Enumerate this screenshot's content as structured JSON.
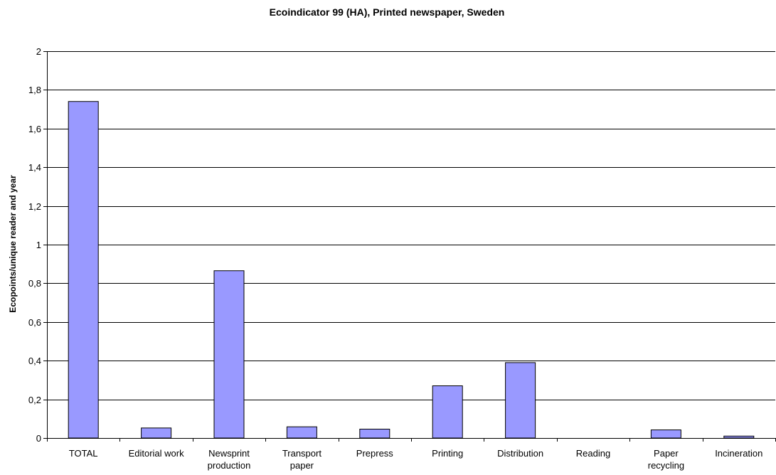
{
  "chart_data": {
    "type": "bar",
    "title": "Ecoindicator 99 (HA), Printed newspaper, Sweden",
    "xlabel": "",
    "ylabel": "Ecopoints/unique reader and year",
    "ylim": [
      0,
      2
    ],
    "yticks": [
      0,
      0.2,
      0.4,
      0.6,
      0.8,
      1,
      1.2,
      1.4,
      1.6,
      1.8,
      2
    ],
    "ytick_labels": [
      "0",
      "0,2",
      "0,4",
      "0,6",
      "0,8",
      "1",
      "1,2",
      "1,4",
      "1,6",
      "1,8",
      "2"
    ],
    "categories": [
      [
        "TOTAL"
      ],
      [
        "Editorial work"
      ],
      [
        "Newsprint",
        "production"
      ],
      [
        "Transport",
        "paper"
      ],
      [
        "Prepress"
      ],
      [
        "Printing"
      ],
      [
        "Distribution"
      ],
      [
        "Reading"
      ],
      [
        "Paper",
        "recycling"
      ],
      [
        "Incineration"
      ]
    ],
    "values": [
      1.74,
      0.052,
      0.865,
      0.058,
      0.046,
      0.27,
      0.39,
      0.0,
      0.042,
      0.01
    ],
    "grid": true,
    "legend": "none",
    "colors": {
      "bar": "#9999ff",
      "bar_edge": "#000000",
      "grid": "#000000"
    }
  }
}
